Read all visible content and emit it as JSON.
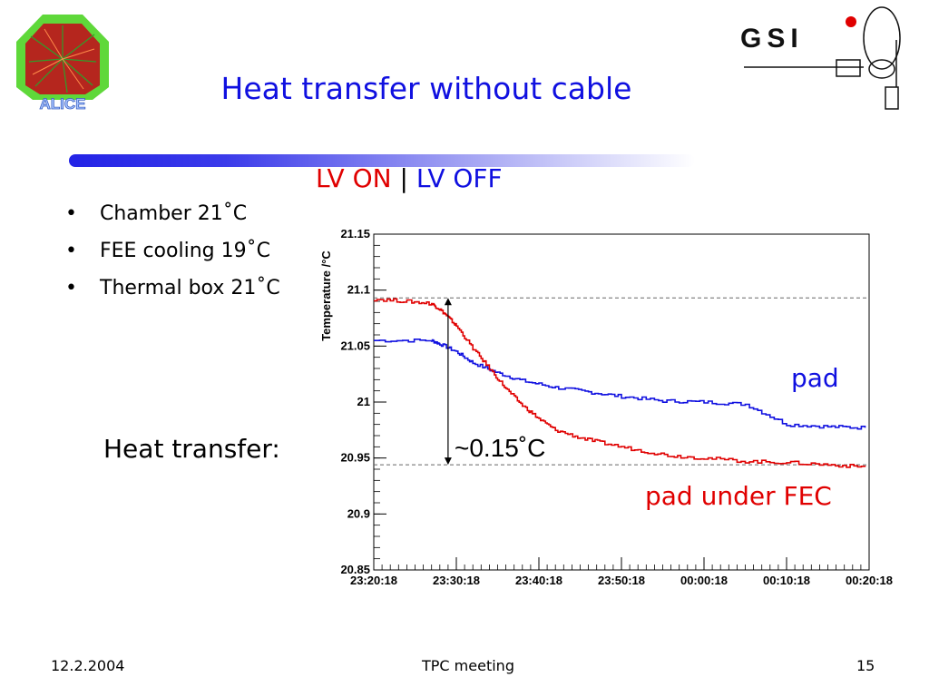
{
  "slide": {
    "title": "Heat transfer without cable",
    "lv_on": "LV ON",
    "lv_sep": "|",
    "lv_off": "LV OFF",
    "bullets": [
      "Chamber 21˚C",
      "FEE cooling 19˚C",
      "Thermal box 21˚C"
    ],
    "bullet_symbol": "•",
    "heat_label": "Heat transfer:",
    "footer_date": "12.2.2004",
    "footer_center": "TPC meeting",
    "footer_page": "15",
    "logo_left": "ALICE",
    "logo_right": "GSI"
  },
  "chart_data": {
    "type": "line",
    "ylabel": "Temperature /°C",
    "x_ticks": [
      "23:20:18",
      "23:30:18",
      "23:40:18",
      "23:50:18",
      "00:00:18",
      "00:10:18",
      "00:20:18"
    ],
    "y_ticks": [
      "21.15",
      "21.1",
      "21.05",
      "21",
      "20.95",
      "20.9",
      "20.85"
    ],
    "ylim": [
      20.85,
      21.15
    ],
    "x_range_minutes": [
      0,
      60
    ],
    "reference_lines": [
      21.093,
      20.944
    ],
    "annotations": {
      "pad": "pad",
      "pad_under_fec": "pad under FEC",
      "delta": "~0.15˚C"
    },
    "series": [
      {
        "name": "pad",
        "color": "#1010e0",
        "x": [
          0,
          7,
          8,
          10,
          12,
          15,
          18,
          22,
          26,
          30,
          35,
          40,
          45,
          50,
          55,
          59.5
        ],
        "y": [
          21.055,
          21.055,
          21.052,
          21.045,
          21.035,
          21.026,
          21.019,
          21.013,
          21.009,
          21.005,
          21.001,
          21.0,
          20.998,
          20.98,
          20.978,
          20.977
        ]
      },
      {
        "name": "pad under FEC",
        "color": "#e00000",
        "x": [
          0,
          4,
          7,
          8,
          9,
          10,
          12,
          14,
          16,
          18,
          20,
          22,
          25,
          28,
          32,
          36,
          40,
          45,
          50,
          55,
          59.5
        ],
        "y": [
          21.092,
          21.09,
          21.088,
          21.083,
          21.076,
          21.068,
          21.048,
          21.03,
          21.012,
          20.997,
          20.985,
          20.975,
          20.968,
          20.963,
          20.957,
          20.952,
          20.95,
          20.947,
          20.946,
          20.944,
          20.942
        ]
      }
    ],
    "grid": false,
    "legend": "none"
  }
}
